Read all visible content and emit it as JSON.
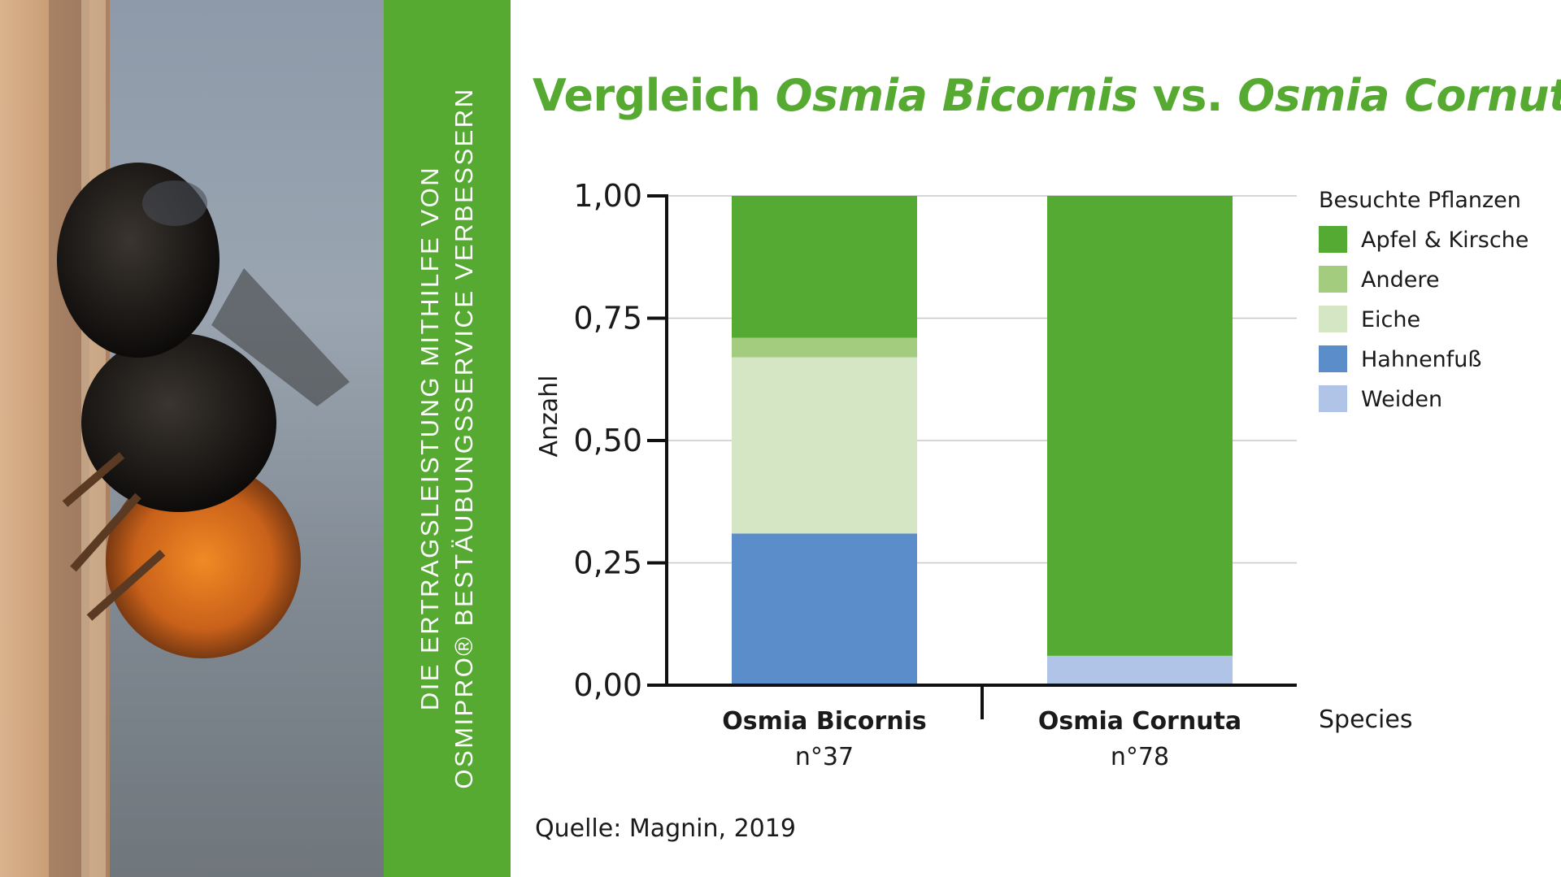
{
  "sidebar": {
    "photo_alt": "Mauerbiene an Nisthilfe",
    "line1": "DIE ERTRAGSLEISTUNG MITHILFE VON",
    "line2": "OSMIPRO® BESTÄUBUNGSSERVICE VERBESSERN"
  },
  "title": {
    "prefix": "Vergleich ",
    "species1": "Osmia Bicornis",
    "middle": " vs. ",
    "species2": "Osmia Cornuta"
  },
  "source": "Quelle: Magnin, 2019",
  "colors": {
    "brand_green": "#56aa32",
    "apfel_kirsche": "#55aa33",
    "andere": "#a3cc7f",
    "eiche": "#d5e6c4",
    "hahnenfuss": "#5b8dca",
    "weiden": "#b0c4e8"
  },
  "chart_data": {
    "type": "bar",
    "stacked": true,
    "ylabel": "Anzahl",
    "xlabel": "Species",
    "ylim": [
      0,
      1
    ],
    "yticks": [
      "0,00",
      "0,25",
      "0,50",
      "0,75",
      "1,00"
    ],
    "ytick_values": [
      0,
      0.25,
      0.5,
      0.75,
      1
    ],
    "grid": true,
    "legend_title": "Besuchte Pflanzen",
    "legend_position": "right",
    "categories": [
      "Osmia Bicornis",
      "Osmia Cornuta"
    ],
    "category_counts": [
      "n°37",
      "n°78"
    ],
    "series": [
      {
        "name": "Hahnenfuß",
        "color": "#5b8dca",
        "values": [
          0.31,
          0.0
        ]
      },
      {
        "name": "Weiden",
        "color": "#b0c4e8",
        "values": [
          0.0,
          0.06
        ]
      },
      {
        "name": "Eiche",
        "color": "#d5e6c4",
        "values": [
          0.36,
          0.0
        ]
      },
      {
        "name": "Andere",
        "color": "#a3cc7f",
        "values": [
          0.04,
          0.0
        ]
      },
      {
        "name": "Apfel & Kirsche",
        "color": "#55aa33",
        "values": [
          0.29,
          0.94
        ]
      }
    ],
    "legend_order": [
      "Apfel & Kirsche",
      "Andere",
      "Eiche",
      "Hahnenfuß",
      "Weiden"
    ]
  }
}
